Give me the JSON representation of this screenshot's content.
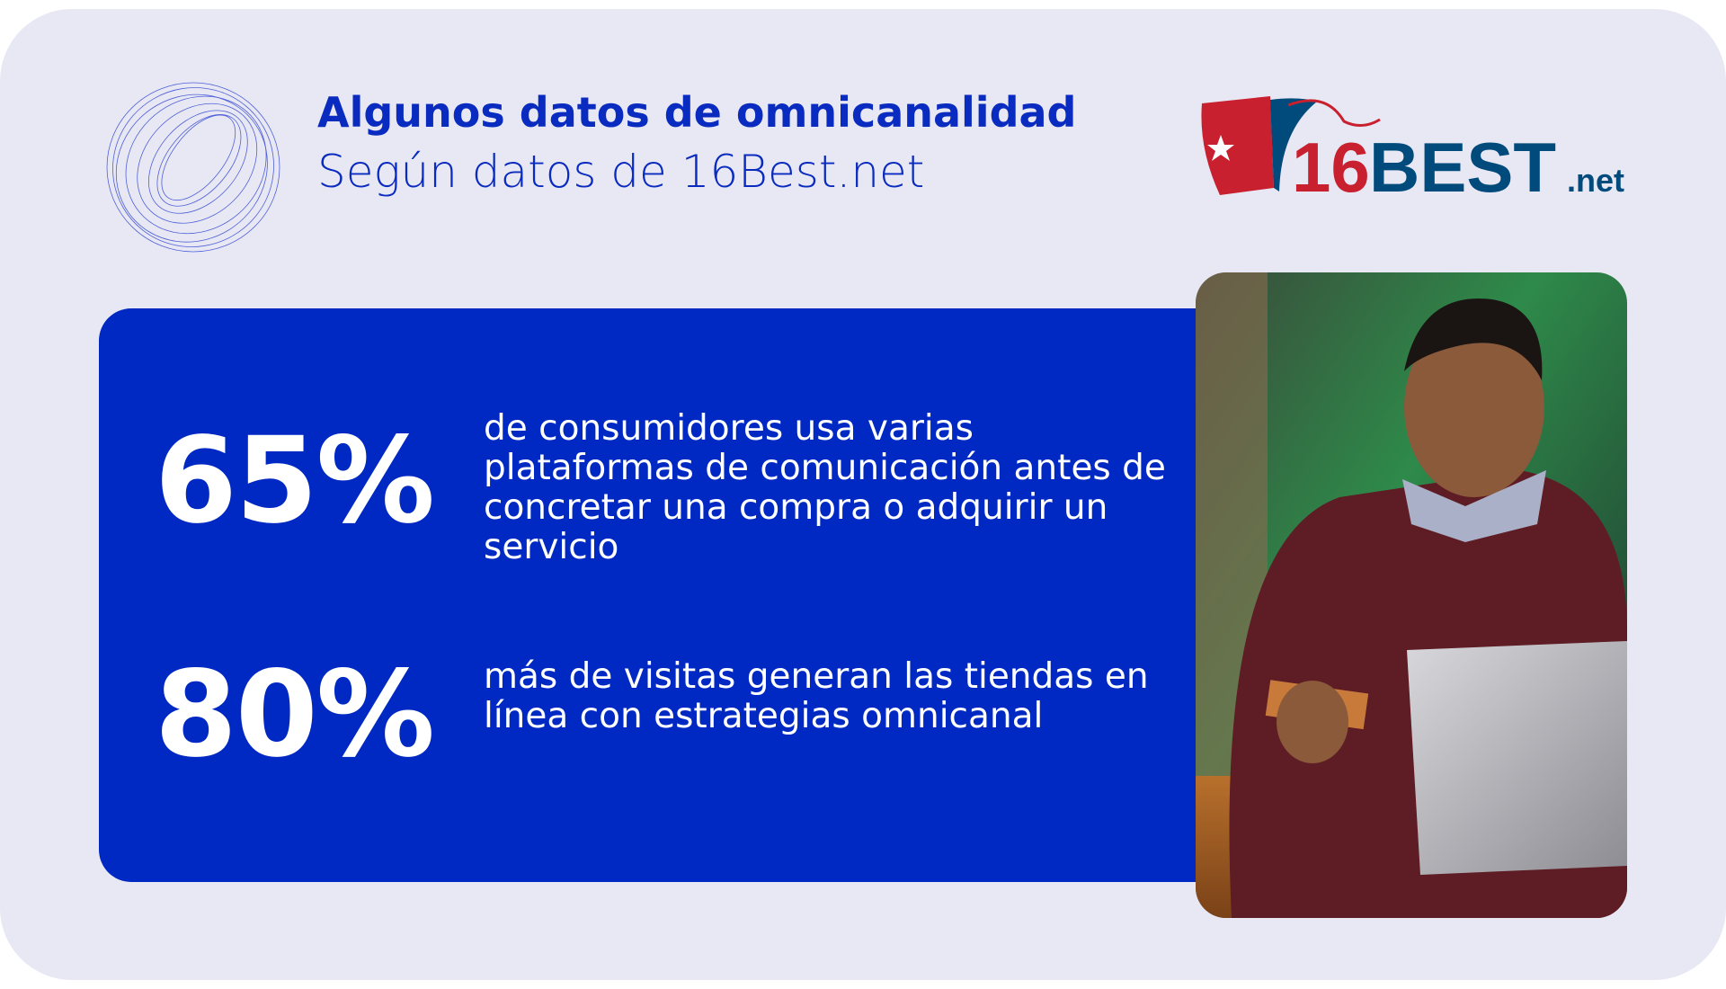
{
  "header": {
    "title": "Algunos datos de omnicanalidad",
    "subtitle": "Según datos de 16Best.net"
  },
  "logo": {
    "text": "16BEST.net",
    "colors": {
      "red": "#c8202f",
      "blue": "#004a7c"
    }
  },
  "stats": [
    {
      "value": "65%",
      "text": "de consumidores usa varias plataformas de comunicación antes de concretar una compra o adquirir un servicio"
    },
    {
      "value": "80%",
      "text": "más de visitas generan las tiendas en línea con estrategias omnicanal"
    }
  ],
  "colors": {
    "accent": "#0029c4",
    "background": "#e8e8f4"
  },
  "photo": {
    "subject": "man-with-credit-card-and-laptop"
  }
}
